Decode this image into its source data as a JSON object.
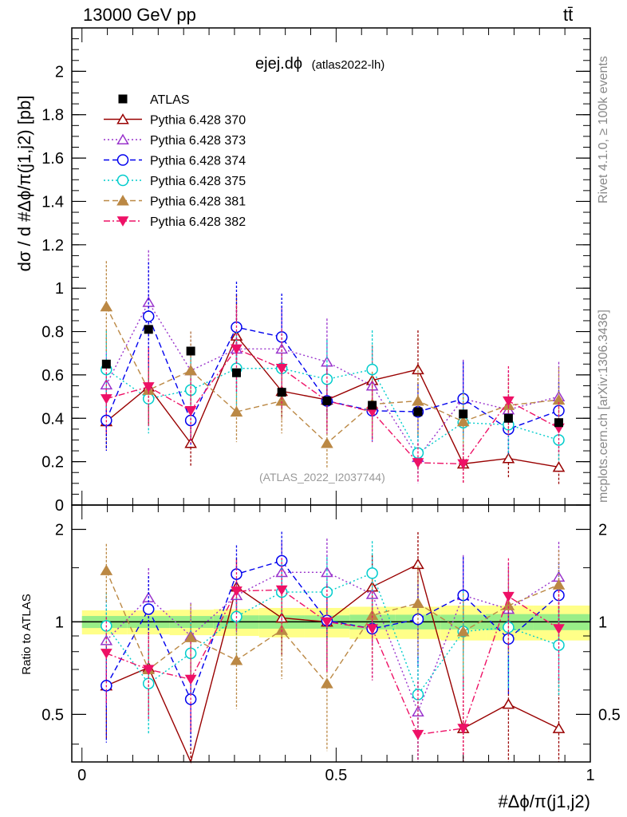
{
  "header": {
    "energy_label": "13000 GeV pp",
    "process_label": "tt̄"
  },
  "side_labels": {
    "rivet": "Rivet 4.1.0, ≥ 100k events",
    "mcplots": "mcplots.cern.ch [arXiv:1306.3436]"
  },
  "watermark": "(ATLAS_2022_I2037744)",
  "chart_data": [
    {
      "type": "scatter",
      "panel": "main",
      "title": "ejej.dϕ",
      "subtitle": "(atlas2022-lh)",
      "ylabel": "dσ / d #Δϕ/π(j1,j2) [pb]",
      "ylim": [
        0,
        2.2
      ],
      "yticks": [
        0,
        0.2,
        0.4,
        0.6,
        0.8,
        1,
        1.2,
        1.4,
        1.6,
        1.8,
        2
      ],
      "ytick_labels": [
        "0",
        "0.2",
        "0.4",
        "0.6",
        "0.8",
        "1",
        "1.2",
        "1.4",
        "1.6",
        "1.8",
        "2"
      ],
      "legend_position": "top-left",
      "x": [
        0.048,
        0.131,
        0.214,
        0.304,
        0.393,
        0.482,
        0.571,
        0.661,
        0.75,
        0.839,
        0.938
      ],
      "data": {
        "name": "ATLAS",
        "values": [
          0.65,
          0.81,
          0.71,
          0.61,
          0.52,
          0.48,
          0.46,
          0.43,
          0.42,
          0.4,
          0.38
        ],
        "errors": [
          0.02,
          0.02,
          0.02,
          0.02,
          0.02,
          0.02,
          0.02,
          0.02,
          0.02,
          0.02,
          0.02
        ]
      },
      "series": [
        {
          "name": "Pythia 6.428 370",
          "color": "#990000",
          "marker": "triangle-up-open",
          "dash": "solid",
          "values": [
            0.385,
            0.545,
            0.285,
            0.78,
            0.525,
            0.485,
            0.575,
            0.625,
            0.19,
            0.215,
            0.175
          ],
          "errors": [
            0.13,
            0.17,
            0.11,
            0.19,
            0.13,
            0.14,
            0.16,
            0.18,
            0.09,
            0.09,
            0.08
          ]
        },
        {
          "name": "Pythia 6.428 373",
          "color": "#9933cc",
          "marker": "triangle-up-open",
          "dash": "dotted",
          "values": [
            0.555,
            0.935,
            0.62,
            0.72,
            0.72,
            0.66,
            0.55,
            0.22,
            0.49,
            0.44,
            0.5
          ],
          "errors": [
            0.22,
            0.24,
            0.18,
            0.18,
            0.19,
            0.2,
            0.18,
            0.12,
            0.18,
            0.18,
            0.16
          ]
        },
        {
          "name": "Pythia 6.428 374",
          "color": "#0000ee",
          "marker": "circle-open",
          "dash": "dashed",
          "values": [
            0.39,
            0.87,
            0.39,
            0.82,
            0.775,
            0.48,
            0.435,
            0.43,
            0.49,
            0.35,
            0.435
          ],
          "errors": [
            0.14,
            0.25,
            0.12,
            0.21,
            0.2,
            0.15,
            0.14,
            0.13,
            0.17,
            0.12,
            0.13
          ]
        },
        {
          "name": "Pythia 6.428 375",
          "color": "#00cccc",
          "marker": "circle-open",
          "dash": "dotted",
          "values": [
            0.625,
            0.49,
            0.53,
            0.63,
            0.63,
            0.58,
            0.625,
            0.24,
            0.38,
            0.37,
            0.3
          ],
          "errors": [
            0.18,
            0.16,
            0.15,
            0.17,
            0.18,
            0.18,
            0.18,
            0.1,
            0.14,
            0.14,
            0.1
          ]
        },
        {
          "name": "Pythia 6.428 381",
          "color": "#bb8844",
          "marker": "triangle-up-filled",
          "dash": "dashed",
          "values": [
            0.915,
            0.53,
            0.62,
            0.43,
            0.48,
            0.285,
            0.465,
            0.48,
            0.385,
            0.46,
            0.485
          ],
          "errors": [
            0.21,
            0.16,
            0.18,
            0.14,
            0.15,
            0.12,
            0.15,
            0.16,
            0.13,
            0.14,
            0.15
          ]
        },
        {
          "name": "Pythia 6.428 382",
          "color": "#ee1166",
          "marker": "triangle-down-filled",
          "dash": "dashdot",
          "values": [
            0.49,
            0.545,
            0.435,
            0.72,
            0.63,
            0.48,
            0.43,
            0.195,
            0.19,
            0.48,
            0.355
          ],
          "errors": [
            0.16,
            0.18,
            0.15,
            0.2,
            0.18,
            0.15,
            0.14,
            0.09,
            0.09,
            0.16,
            0.12
          ]
        }
      ]
    },
    {
      "type": "scatter",
      "panel": "ratio",
      "ylabel": "Ratio to ATLAS",
      "xlabel": "#Δϕ/π(j1,j2)",
      "yscale": "log",
      "ylim": [
        0.35,
        2.4
      ],
      "yticks": [
        0.5,
        1,
        2
      ],
      "ytick_labels": [
        "0.5",
        "1",
        "2"
      ],
      "xlim": [
        -0.02,
        1.0
      ],
      "xticks": [
        0,
        0.5,
        1
      ],
      "xtick_labels": [
        "0",
        "0.5",
        "1"
      ],
      "band_stat": [
        0.045,
        0.045,
        0.045,
        0.05,
        0.05,
        0.05,
        0.055,
        0.055,
        0.055,
        0.06,
        0.06
      ],
      "band_total": [
        0.09,
        0.09,
        0.095,
        0.1,
        0.11,
        0.11,
        0.12,
        0.12,
        0.13,
        0.13,
        0.13
      ],
      "series": [
        {
          "name": "Pythia 6.428 370",
          "values": [
            0.62,
            0.71,
            0.34,
            1.3,
            1.03,
            1.0,
            1.3,
            1.54,
            0.45,
            0.54,
            0.45
          ]
        },
        {
          "name": "Pythia 6.428 373",
          "values": [
            0.87,
            1.2,
            0.9,
            1.22,
            1.45,
            1.45,
            1.23,
            0.51,
            1.22,
            1.1,
            1.4
          ]
        },
        {
          "name": "Pythia 6.428 374",
          "values": [
            0.62,
            1.1,
            0.56,
            1.43,
            1.58,
            1.01,
            0.95,
            1.02,
            1.22,
            0.88,
            1.22
          ]
        },
        {
          "name": "Pythia 6.428 375",
          "values": [
            0.97,
            0.63,
            0.79,
            1.04,
            1.25,
            1.25,
            1.44,
            0.58,
            0.93,
            0.96,
            0.84
          ]
        },
        {
          "name": "Pythia 6.428 381",
          "values": [
            1.47,
            0.7,
            0.89,
            0.75,
            0.94,
            0.63,
            1.05,
            1.15,
            0.93,
            1.13,
            1.32
          ]
        },
        {
          "name": "Pythia 6.428 382",
          "values": [
            0.79,
            0.7,
            0.65,
            1.26,
            1.27,
            1.0,
            0.95,
            0.43,
            0.45,
            1.21,
            0.95
          ]
        }
      ]
    }
  ]
}
